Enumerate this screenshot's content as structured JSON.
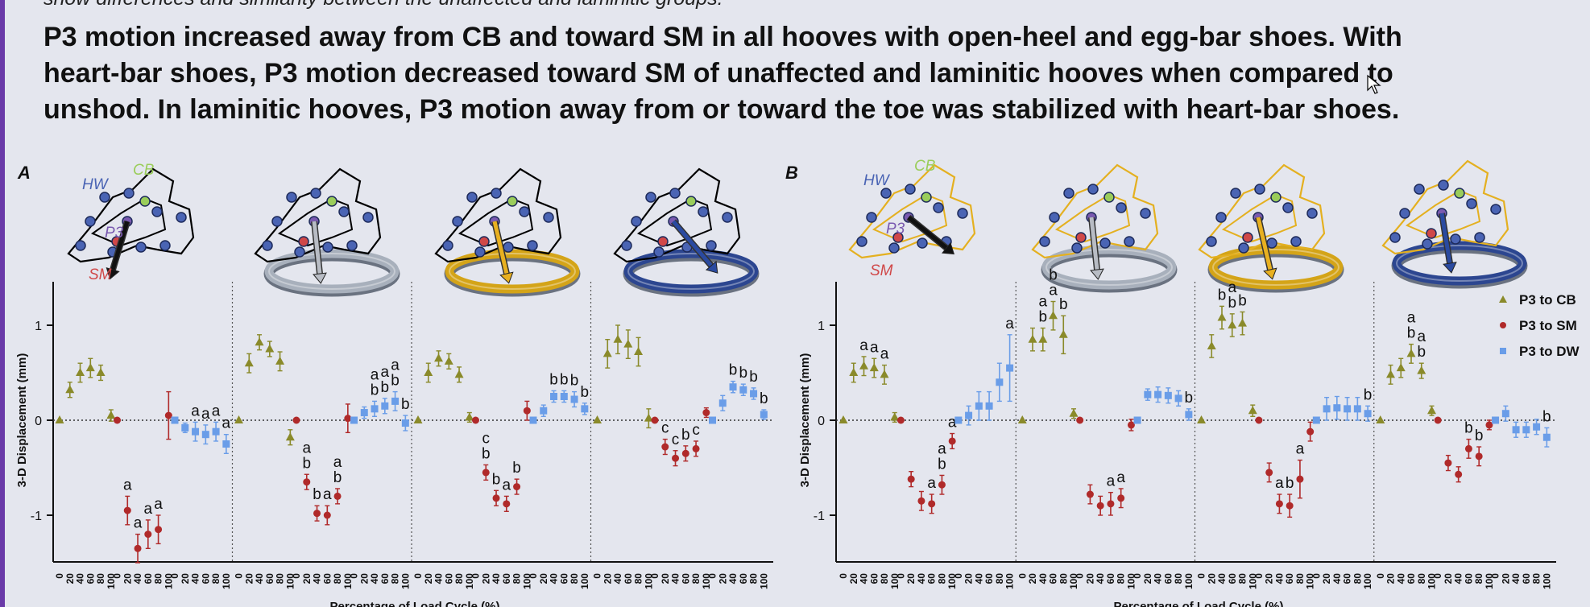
{
  "top_line": "show differences and similarity between the unaffected and laminitic groups.",
  "summary_lines": [
    "P3 motion increased away from CB and toward SM in all hooves with open-heel and egg-bar shoes. With",
    "heart-bar shoes, P3 motion decreased toward SM of unaffected and laminitic hooves when compared to",
    "unshod. In laminitic hooves, P3 motion away from or toward the toe was stabilized with heart-bar shoes."
  ],
  "colors": {
    "CB": "#8a8a2a",
    "SM": "#b02a2a",
    "DW": "#6a9de8",
    "bone": "#000000",
    "bone_B": "#e4b020",
    "shoe_open": "#a8b0bc",
    "shoe_egg": "#d4a418",
    "shoe_heart": "#2c4690"
  },
  "icons": [
    "hoof-unshod-icon",
    "hoof-open-heel-shoe-icon",
    "hoof-egg-bar-shoe-icon",
    "hoof-heart-bar-shoe-icon"
  ],
  "hoof_labels": {
    "HW": "HW",
    "CB": "CB",
    "P3": "P3",
    "SM": "SM"
  },
  "chart_data": [
    {
      "type": "scatter",
      "panel": "A",
      "ylabel": "3-D Displacement (mm)",
      "xlabel": "Percentage of Load Cycle (%)",
      "ylim": [
        -1.5,
        1.5
      ],
      "yticks": [
        -1,
        0,
        1
      ],
      "x": [
        0,
        20,
        40,
        60,
        80,
        100
      ],
      "groups": [
        {
          "series": [
            {
              "name": "P3 to CB",
              "values": [
                0,
                0.32,
                0.5,
                0.55,
                0.5,
                0.05
              ],
              "err": [
                0,
                0.08,
                0.1,
                0.1,
                0.08,
                0.06
              ],
              "labels": [
                "",
                "",
                "",
                "",
                "",
                ""
              ]
            },
            {
              "name": "P3 to SM",
              "values": [
                0,
                -0.95,
                -1.35,
                -1.2,
                -1.15,
                0.05
              ],
              "err": [
                0,
                0.15,
                0.15,
                0.15,
                0.15,
                0.25
              ],
              "labels": [
                "",
                "a",
                "a",
                "a",
                "a",
                ""
              ]
            },
            {
              "name": "P3 to DW",
              "values": [
                0,
                -0.08,
                -0.12,
                -0.15,
                -0.12,
                -0.25
              ],
              "err": [
                0,
                0.05,
                0.1,
                0.1,
                0.1,
                0.1
              ],
              "labels": [
                "",
                "",
                "a",
                "a",
                "a",
                "a"
              ]
            }
          ]
        },
        {
          "series": [
            {
              "name": "P3 to CB",
              "values": [
                0,
                0.6,
                0.82,
                0.75,
                0.62,
                -0.18
              ],
              "err": [
                0,
                0.1,
                0.08,
                0.08,
                0.1,
                0.08
              ],
              "labels": [
                "",
                "",
                "",
                "",
                "",
                ""
              ]
            },
            {
              "name": "P3 to SM",
              "values": [
                0,
                -0.65,
                -0.98,
                -1.0,
                -0.8,
                0.02
              ],
              "err": [
                0,
                0.08,
                0.08,
                0.1,
                0.08,
                0.15
              ],
              "labels": [
                "",
                "ab",
                "b",
                "a",
                "ab",
                ""
              ]
            },
            {
              "name": "P3 to DW",
              "values": [
                0,
                0.08,
                0.12,
                0.15,
                0.2,
                -0.03
              ],
              "err": [
                0,
                0.06,
                0.08,
                0.08,
                0.1,
                0.08
              ],
              "labels": [
                "",
                "",
                "ab",
                "ab",
                "ab",
                "b"
              ]
            }
          ]
        },
        {
          "series": [
            {
              "name": "P3 to CB",
              "values": [
                0,
                0.5,
                0.65,
                0.62,
                0.48,
                0.03
              ],
              "err": [
                0,
                0.1,
                0.08,
                0.08,
                0.08,
                0.05
              ],
              "labels": [
                "",
                "",
                "",
                "",
                "",
                ""
              ]
            },
            {
              "name": "P3 to SM",
              "values": [
                0,
                -0.55,
                -0.82,
                -0.88,
                -0.7,
                0.1
              ],
              "err": [
                0,
                0.08,
                0.08,
                0.08,
                0.08,
                0.1
              ],
              "labels": [
                "",
                "cb",
                "b",
                "a",
                "b",
                ""
              ]
            },
            {
              "name": "P3 to DW",
              "values": [
                0,
                0.1,
                0.25,
                0.25,
                0.22,
                0.12
              ],
              "err": [
                0,
                0.06,
                0.06,
                0.06,
                0.08,
                0.06
              ],
              "labels": [
                "",
                "",
                "b",
                "b",
                "b",
                "b"
              ]
            }
          ]
        },
        {
          "series": [
            {
              "name": "P3 to CB",
              "values": [
                0,
                0.7,
                0.85,
                0.8,
                0.72,
                0.02
              ],
              "err": [
                0,
                0.15,
                0.15,
                0.15,
                0.15,
                0.1
              ],
              "labels": [
                "",
                "",
                "",
                "",
                "",
                ""
              ]
            },
            {
              "name": "P3 to SM",
              "values": [
                0,
                -0.28,
                -0.4,
                -0.35,
                -0.3,
                0.08
              ],
              "err": [
                0,
                0.08,
                0.08,
                0.08,
                0.08,
                0.05
              ],
              "labels": [
                "",
                "c",
                "c",
                "b",
                "c",
                ""
              ]
            },
            {
              "name": "P3 to DW",
              "values": [
                0,
                0.18,
                0.35,
                0.32,
                0.28,
                0.06
              ],
              "err": [
                0,
                0.08,
                0.06,
                0.06,
                0.06,
                0.05
              ],
              "labels": [
                "",
                "",
                "b",
                "b",
                "b",
                "b"
              ]
            }
          ]
        }
      ]
    },
    {
      "type": "scatter",
      "panel": "B",
      "ylabel": "3-D Displacement (mm)",
      "xlabel": "Percentage of Load Cycle (%)",
      "ylim": [
        -1.5,
        1.5
      ],
      "yticks": [
        -1,
        0,
        1
      ],
      "x": [
        0,
        20,
        40,
        60,
        80,
        100
      ],
      "legend": [
        "P3 to CB",
        "P3 to SM",
        "P3 to DW"
      ],
      "legend_position": "top-right",
      "groups": [
        {
          "series": [
            {
              "name": "P3 to CB",
              "values": [
                0,
                0.5,
                0.57,
                0.55,
                0.48,
                0.03
              ],
              "err": [
                0,
                0.1,
                0.1,
                0.1,
                0.1,
                0.05
              ],
              "labels": [
                "",
                "",
                "a",
                "a",
                "a",
                ""
              ]
            },
            {
              "name": "P3 to SM",
              "values": [
                0,
                -0.62,
                -0.85,
                -0.88,
                -0.68,
                -0.22
              ],
              "err": [
                0,
                0.08,
                0.1,
                0.1,
                0.1,
                0.08
              ],
              "labels": [
                "",
                "",
                "",
                "a",
                "ab",
                "a"
              ]
            },
            {
              "name": "P3 to DW",
              "values": [
                0,
                0.05,
                0.15,
                0.15,
                0.4,
                0.55
              ],
              "err": [
                0,
                0.1,
                0.15,
                0.15,
                0.2,
                0.35
              ],
              "labels": [
                "",
                "",
                "",
                "",
                "",
                "a"
              ]
            }
          ]
        },
        {
          "series": [
            {
              "name": "P3 to CB",
              "values": [
                0,
                0.85,
                0.85,
                1.1,
                0.9,
                0.07
              ],
              "err": [
                0,
                0.12,
                0.12,
                0.15,
                0.2,
                0.05
              ],
              "labels": [
                "",
                "",
                "ab",
                "ba",
                "b",
                ""
              ]
            },
            {
              "name": "P3 to SM",
              "values": [
                0,
                -0.78,
                -0.9,
                -0.88,
                -0.82,
                -0.05
              ],
              "err": [
                0,
                0.1,
                0.1,
                0.12,
                0.1,
                0.06
              ],
              "labels": [
                "",
                "",
                "",
                "a",
                "a",
                ""
              ]
            },
            {
              "name": "P3 to DW",
              "values": [
                0,
                0.27,
                0.27,
                0.26,
                0.23,
                0.06
              ],
              "err": [
                0,
                0.06,
                0.08,
                0.08,
                0.08,
                0.06
              ],
              "labels": [
                "",
                "",
                "",
                "",
                "",
                "b"
              ]
            }
          ]
        },
        {
          "series": [
            {
              "name": "P3 to CB",
              "values": [
                0,
                0.78,
                1.08,
                1.0,
                1.02,
                0.1
              ],
              "err": [
                0,
                0.12,
                0.12,
                0.12,
                0.12,
                0.06
              ],
              "labels": [
                "",
                "",
                "b",
                "ab",
                "b",
                ""
              ]
            },
            {
              "name": "P3 to SM",
              "values": [
                0,
                -0.55,
                -0.88,
                -0.9,
                -0.62,
                -0.12
              ],
              "err": [
                0,
                0.1,
                0.1,
                0.12,
                0.2,
                0.1
              ],
              "labels": [
                "",
                "",
                "a",
                "b",
                "a",
                ""
              ]
            },
            {
              "name": "P3 to DW",
              "values": [
                0,
                0.12,
                0.13,
                0.12,
                0.12,
                0.07
              ],
              "err": [
                0,
                0.12,
                0.12,
                0.12,
                0.12,
                0.08
              ],
              "labels": [
                "",
                "",
                "",
                "",
                "",
                "b"
              ]
            }
          ]
        },
        {
          "series": [
            {
              "name": "P3 to CB",
              "values": [
                0,
                0.48,
                0.55,
                0.7,
                0.52,
                0.1
              ],
              "err": [
                0,
                0.1,
                0.1,
                0.1,
                0.08,
                0.05
              ],
              "labels": [
                "",
                "",
                "",
                "ab",
                "ab",
                ""
              ]
            },
            {
              "name": "P3 to SM",
              "values": [
                0,
                -0.45,
                -0.57,
                -0.3,
                -0.38,
                -0.05
              ],
              "err": [
                0,
                0.08,
                0.08,
                0.1,
                0.1,
                0.05
              ],
              "labels": [
                "",
                "",
                "",
                "b",
                "b",
                ""
              ]
            },
            {
              "name": "P3 to DW",
              "values": [
                0,
                0.07,
                -0.1,
                -0.1,
                -0.07,
                -0.18
              ],
              "err": [
                0,
                0.08,
                0.08,
                0.08,
                0.08,
                0.1
              ],
              "labels": [
                "",
                "",
                "",
                "",
                "",
                "b"
              ]
            }
          ]
        }
      ]
    }
  ]
}
